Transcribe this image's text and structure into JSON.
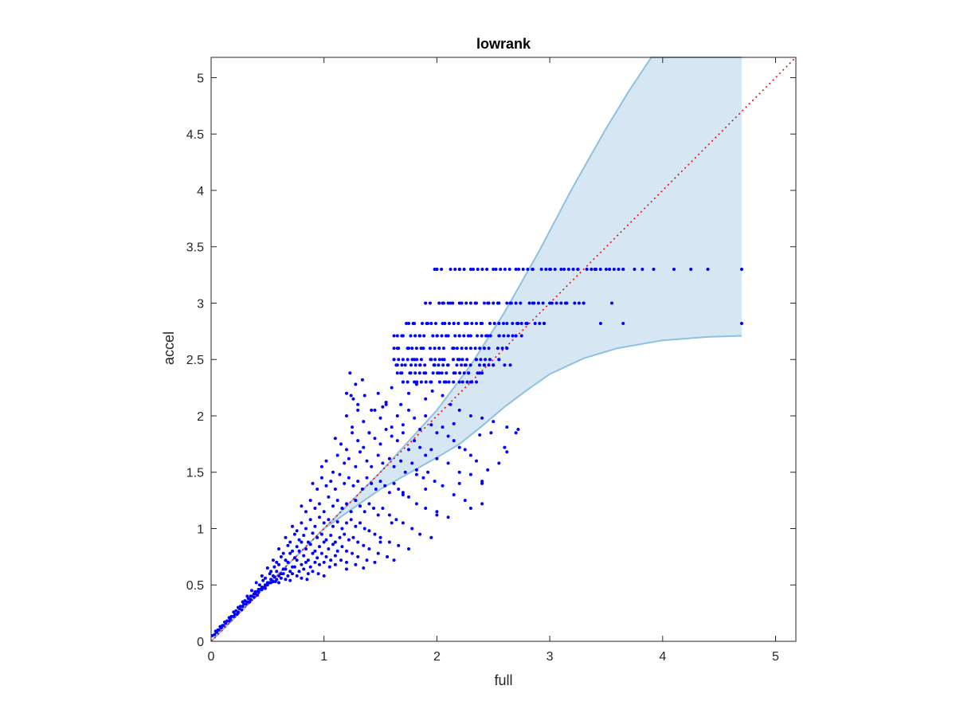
{
  "chart_data": {
    "type": "scatter",
    "title": "lowrank",
    "xlabel": "full",
    "ylabel": "accel",
    "xlim": [
      0,
      5.18
    ],
    "ylim": [
      0,
      5.18
    ],
    "xticks": [
      "0",
      "1",
      "2",
      "3",
      "4",
      "5"
    ],
    "yticks": [
      "0",
      "0.5",
      "1",
      "1.5",
      "2",
      "2.5",
      "3",
      "3.5",
      "4",
      "4.5",
      "5"
    ],
    "xtick_values": [
      0,
      1,
      2,
      3,
      4,
      5
    ],
    "ytick_values": [
      0,
      0.5,
      1,
      1.5,
      2,
      2.5,
      3,
      3.5,
      4,
      4.5,
      5
    ],
    "grid": false,
    "colors": {
      "points": "#0000ff",
      "band_fill": "#d6e7f3",
      "band_edge": "#8ec1df",
      "reference_line": "#ff0000",
      "axes": "#262626"
    },
    "reference_line": {
      "style": "dotted",
      "from": [
        0,
        0
      ],
      "to": [
        5.18,
        5.18
      ]
    },
    "band": {
      "upper": [
        [
          0,
          0
        ],
        [
          0.5,
          0.5
        ],
        [
          1,
          1
        ],
        [
          1.5,
          1.5
        ],
        [
          2,
          2.05
        ],
        [
          2.3,
          2.45
        ],
        [
          2.6,
          2.92
        ],
        [
          2.9,
          3.45
        ],
        [
          3.2,
          4.02
        ],
        [
          3.5,
          4.55
        ],
        [
          3.7,
          4.88
        ],
        [
          3.9,
          5.18
        ],
        [
          4.7,
          5.18
        ]
      ],
      "lower": [
        [
          4.7,
          2.71
        ],
        [
          4.4,
          2.7
        ],
        [
          4.0,
          2.67
        ],
        [
          3.6,
          2.6
        ],
        [
          3.3,
          2.51
        ],
        [
          3.0,
          2.37
        ],
        [
          2.8,
          2.23
        ],
        [
          2.6,
          2.08
        ],
        [
          2.4,
          1.91
        ],
        [
          2.2,
          1.75
        ],
        [
          2.0,
          1.63
        ],
        [
          1.5,
          1.35
        ],
        [
          1,
          1
        ],
        [
          0.5,
          0.5
        ],
        [
          0,
          0
        ]
      ]
    },
    "horizontal_bands": [
      {
        "y": 3.3,
        "x_from": 2.0,
        "x_to": 3.65
      },
      {
        "y": 3.0,
        "x_from": 1.9,
        "x_to": 3.3
      },
      {
        "y": 2.82,
        "x_from": 1.75,
        "x_to": 2.95
      },
      {
        "y": 2.71,
        "x_from": 1.65,
        "x_to": 2.75
      },
      {
        "y": 2.6,
        "x_from": 1.62,
        "x_to": 2.62
      },
      {
        "y": 2.5,
        "x_from": 1.62,
        "x_to": 2.55
      },
      {
        "y": 2.45,
        "x_from": 1.65,
        "x_to": 2.5
      },
      {
        "y": 2.38,
        "x_from": 1.65,
        "x_to": 2.4
      },
      {
        "y": 2.3,
        "x_from": 1.7,
        "x_to": 2.35
      }
    ],
    "series": [
      {
        "x": [
          1.98,
          2.0,
          2.2,
          2.3,
          2.5,
          2.7,
          2.85,
          3.0,
          3.1,
          3.25,
          3.4,
          3.5,
          3.65,
          3.75,
          3.82,
          3.92,
          4.1,
          4.25,
          4.4,
          4.7,
          1.9,
          2.05,
          2.12,
          2.2,
          2.35,
          2.45,
          2.55,
          2.65,
          2.85,
          3.0,
          3.15,
          3.3,
          3.55,
          1.73,
          1.8,
          1.92,
          2.05,
          2.15,
          2.25,
          2.4,
          2.55,
          2.62,
          2.72,
          2.8,
          2.95,
          3.45,
          3.65,
          4.7,
          1.62,
          1.7,
          1.85,
          2.0,
          2.1,
          2.2,
          2.3,
          2.45,
          2.55,
          2.7,
          1.65,
          1.75,
          1.88,
          2.02,
          2.15,
          2.3,
          2.42,
          2.62,
          1.62,
          1.7,
          1.8,
          1.95,
          2.05,
          2.2,
          2.35,
          2.55,
          1.64,
          1.72,
          1.85,
          1.98,
          2.1,
          2.25,
          2.42,
          2.5,
          2.6,
          2.65,
          1.68,
          1.76,
          1.9,
          2.02,
          2.15,
          2.28,
          2.38,
          1.7,
          1.8,
          1.95,
          2.08,
          2.2,
          2.3,
          1.2,
          1.26,
          1.3,
          1.36,
          1.42,
          1.48,
          1.55,
          1.6,
          1.68,
          1.75,
          1.82,
          1.9,
          1.96,
          2.05,
          2.12,
          2.2,
          2.3,
          2.4,
          2.5,
          2.62,
          2.7,
          1.2,
          1.25,
          1.3,
          1.35,
          1.4,
          1.45,
          1.5,
          1.55,
          1.6,
          1.65,
          1.7,
          1.75,
          1.8,
          1.85,
          1.9,
          1.95,
          2.0,
          2.05,
          2.1,
          2.15,
          2.2,
          2.25,
          2.3,
          2.35,
          1.1,
          1.15,
          1.2,
          1.25,
          1.3,
          1.35,
          1.4,
          1.45,
          1.5,
          1.55,
          1.6,
          1.65,
          1.7,
          1.75,
          1.8,
          1.85,
          1.9,
          1.95,
          2.0,
          2.1,
          2.2,
          2.3,
          2.4,
          0.98,
          1.02,
          1.08,
          1.12,
          1.18,
          1.22,
          1.28,
          1.32,
          1.38,
          1.42,
          1.48,
          1.52,
          1.58,
          1.62,
          1.68,
          1.72,
          1.78,
          1.82,
          1.88,
          1.92,
          1.98,
          2.05,
          2.15,
          2.25,
          2.4,
          0.9,
          0.94,
          0.98,
          1.02,
          1.06,
          1.1,
          1.14,
          1.18,
          1.22,
          1.26,
          1.3,
          1.34,
          1.38,
          1.42,
          1.46,
          1.5,
          1.54,
          1.58,
          1.62,
          1.66,
          1.7,
          1.75,
          1.82,
          1.9,
          2.0,
          2.1,
          0.8,
          0.84,
          0.88,
          0.92,
          0.96,
          1.0,
          1.04,
          1.08,
          1.12,
          1.16,
          1.2,
          1.24,
          1.28,
          1.32,
          1.36,
          1.4,
          1.44,
          1.48,
          1.52,
          1.58,
          1.64,
          1.7,
          1.78,
          1.85,
          1.95,
          0.72,
          0.76,
          0.8,
          0.84,
          0.88,
          0.92,
          0.96,
          1.0,
          1.04,
          1.08,
          1.12,
          1.16,
          1.2,
          1.24,
          1.28,
          1.32,
          1.36,
          1.4,
          1.45,
          1.5,
          1.58,
          1.66,
          1.75,
          0.66,
          0.7,
          0.74,
          0.78,
          0.82,
          0.86,
          0.9,
          0.94,
          0.98,
          1.02,
          1.06,
          1.1,
          1.14,
          1.18,
          1.22,
          1.26,
          1.3,
          1.35,
          1.4,
          1.48,
          1.56,
          1.62,
          0.6,
          0.64,
          0.68,
          0.72,
          0.76,
          0.8,
          0.84,
          0.88,
          0.92,
          0.96,
          1.0,
          1.04,
          1.08,
          1.12,
          1.16,
          1.2,
          1.25,
          1.3,
          1.38,
          1.45,
          0.55,
          0.58,
          0.62,
          0.66,
          0.7,
          0.74,
          0.78,
          0.82,
          0.86,
          0.9,
          0.94,
          0.98,
          1.02,
          1.06,
          1.1,
          1.15,
          1.2,
          1.28,
          1.35,
          0.5,
          0.53,
          0.56,
          0.6,
          0.64,
          0.68,
          0.72,
          0.76,
          0.8,
          0.84,
          0.88,
          0.92,
          0.96,
          1.0,
          1.05,
          1.1,
          1.2,
          0.45,
          0.48,
          0.52,
          0.55,
          0.58,
          0.62,
          0.66,
          0.7,
          0.74,
          0.78,
          0.82,
          0.86,
          0.9,
          0.95,
          1.0,
          0.4,
          0.43,
          0.46,
          0.5,
          0.53,
          0.56,
          0.6,
          0.64,
          0.68,
          0.72,
          0.76,
          0.8,
          0.85,
          0.36,
          0.39,
          0.42,
          0.45,
          0.48,
          0.52,
          0.55,
          0.58,
          0.62,
          0.66,
          0.7,
          0.32,
          0.35,
          0.38,
          0.41,
          0.44,
          0.47,
          0.5,
          0.53,
          0.57,
          0.6,
          0.28,
          0.3,
          0.33,
          0.36,
          0.39,
          0.42,
          0.45,
          0.48,
          0.24,
          0.26,
          0.29,
          0.32,
          0.35,
          0.38,
          0.41,
          0.2,
          0.22,
          0.25,
          0.28,
          0.31,
          0.34,
          0.16,
          0.18,
          0.21,
          0.24,
          0.27,
          0.12,
          0.14,
          0.17,
          0.2,
          0.23,
          0.08,
          0.1,
          0.13,
          0.16,
          0.04,
          0.06,
          0.09,
          0.11,
          0.01,
          0.03,
          0.05,
          0.07,
          1.23,
          1.24,
          1.28,
          1.34,
          1.52,
          2.15,
          2.38,
          2.48,
          2.6,
          2.72,
          2.55,
          2.4,
          2.2,
          1.6,
          1.5,
          2.62,
          1.28,
          2.0,
          2.3,
          1.7,
          1.9,
          2.45,
          1.82
        ],
        "y": [
          3.3,
          3.3,
          3.3,
          3.3,
          3.3,
          3.3,
          3.3,
          3.3,
          3.3,
          3.3,
          3.3,
          3.3,
          3.3,
          3.3,
          3.3,
          3.3,
          3.3,
          3.3,
          3.3,
          3.3,
          3.0,
          3.0,
          3.0,
          3.0,
          3.0,
          3.0,
          3.0,
          3.0,
          3.0,
          3.0,
          3.0,
          3.0,
          3.0,
          2.82,
          2.82,
          2.82,
          2.82,
          2.82,
          2.82,
          2.82,
          2.82,
          2.82,
          2.82,
          2.82,
          2.82,
          2.82,
          2.82,
          2.82,
          2.71,
          2.71,
          2.71,
          2.71,
          2.71,
          2.71,
          2.71,
          2.71,
          2.71,
          2.71,
          2.6,
          2.6,
          2.6,
          2.6,
          2.6,
          2.6,
          2.6,
          2.6,
          2.5,
          2.5,
          2.5,
          2.5,
          2.5,
          2.5,
          2.5,
          2.5,
          2.45,
          2.45,
          2.45,
          2.45,
          2.45,
          2.45,
          2.45,
          2.45,
          2.45,
          2.45,
          2.38,
          2.38,
          2.38,
          2.38,
          2.38,
          2.38,
          2.38,
          2.3,
          2.3,
          2.3,
          2.3,
          2.3,
          2.3,
          2.2,
          2.15,
          2.1,
          2.18,
          2.05,
          2.2,
          2.12,
          2.25,
          2.1,
          2.2,
          2.28,
          2.15,
          2.22,
          2.18,
          2.1,
          2.05,
          2.0,
          1.98,
          1.95,
          1.9,
          1.85,
          2.0,
          1.9,
          2.05,
          1.95,
          1.85,
          2.05,
          1.98,
          2.1,
          1.9,
          2.0,
          1.92,
          2.05,
          1.98,
          1.88,
          2.0,
          1.92,
          1.85,
          1.9,
          1.82,
          1.78,
          1.72,
          1.7,
          1.65,
          1.6,
          1.8,
          1.75,
          1.7,
          1.85,
          1.78,
          1.72,
          1.85,
          1.8,
          1.75,
          1.88,
          1.82,
          1.78,
          1.85,
          1.7,
          1.78,
          1.72,
          1.65,
          1.7,
          1.62,
          1.58,
          1.5,
          1.48,
          1.4,
          1.55,
          1.6,
          1.5,
          1.65,
          1.58,
          1.62,
          1.55,
          1.68,
          1.6,
          1.55,
          1.65,
          1.58,
          1.62,
          1.55,
          1.6,
          1.5,
          1.58,
          1.52,
          1.45,
          1.5,
          1.42,
          1.38,
          1.3,
          1.25,
          1.22,
          1.4,
          1.35,
          1.45,
          1.38,
          1.42,
          1.35,
          1.48,
          1.4,
          1.45,
          1.38,
          1.42,
          1.35,
          1.45,
          1.4,
          1.35,
          1.42,
          1.38,
          1.32,
          1.4,
          1.35,
          1.3,
          1.28,
          1.22,
          1.18,
          1.15,
          1.1,
          1.2,
          1.15,
          1.25,
          1.18,
          1.22,
          1.15,
          1.28,
          1.2,
          1.25,
          1.18,
          1.22,
          1.15,
          1.25,
          1.2,
          1.15,
          1.22,
          1.18,
          1.12,
          1.18,
          1.12,
          1.08,
          1.05,
          1.0,
          0.95,
          0.92,
          1.02,
          0.98,
          1.05,
          1.0,
          1.08,
          1.02,
          1.1,
          1.05,
          1.08,
          1.02,
          1.06,
          1.0,
          1.05,
          1.08,
          1.02,
          1.05,
          1.0,
          0.98,
          0.95,
          0.92,
          0.88,
          0.85,
          0.82,
          0.92,
          0.88,
          0.95,
          0.9,
          0.94,
          0.88,
          0.96,
          0.92,
          0.95,
          0.9,
          0.94,
          0.88,
          0.92,
          0.95,
          0.9,
          0.92,
          0.88,
          0.85,
          0.82,
          0.78,
          0.75,
          0.72,
          0.82,
          0.78,
          0.85,
          0.8,
          0.84,
          0.88,
          0.82,
          0.86,
          0.8,
          0.84,
          0.88,
          0.82,
          0.86,
          0.8,
          0.84,
          0.8,
          0.78,
          0.75,
          0.72,
          0.7,
          0.72,
          0.7,
          0.75,
          0.72,
          0.78,
          0.74,
          0.8,
          0.76,
          0.72,
          0.78,
          0.74,
          0.78,
          0.75,
          0.72,
          0.76,
          0.72,
          0.7,
          0.68,
          0.65,
          0.65,
          0.62,
          0.66,
          0.68,
          0.64,
          0.7,
          0.66,
          0.72,
          0.68,
          0.7,
          0.66,
          0.7,
          0.68,
          0.7,
          0.66,
          0.68,
          0.64,
          0.58,
          0.56,
          0.6,
          0.58,
          0.62,
          0.6,
          0.64,
          0.62,
          0.66,
          0.62,
          0.64,
          0.6,
          0.62,
          0.6,
          0.58,
          0.52,
          0.5,
          0.54,
          0.52,
          0.55,
          0.57,
          0.58,
          0.6,
          0.58,
          0.6,
          0.58,
          0.56,
          0.55,
          0.45,
          0.44,
          0.46,
          0.48,
          0.5,
          0.52,
          0.53,
          0.55,
          0.56,
          0.55,
          0.54,
          0.4,
          0.4,
          0.42,
          0.44,
          0.46,
          0.48,
          0.5,
          0.52,
          0.53,
          0.52,
          0.35,
          0.36,
          0.38,
          0.4,
          0.42,
          0.44,
          0.46,
          0.47,
          0.3,
          0.31,
          0.33,
          0.35,
          0.37,
          0.39,
          0.41,
          0.26,
          0.27,
          0.29,
          0.31,
          0.33,
          0.35,
          0.21,
          0.22,
          0.24,
          0.26,
          0.28,
          0.17,
          0.18,
          0.2,
          0.22,
          0.24,
          0.13,
          0.14,
          0.16,
          0.18,
          0.09,
          0.1,
          0.12,
          0.14,
          0.05,
          0.06,
          0.08,
          0.1,
          2.38,
          2.18,
          2.28,
          2.32,
          2.08,
          1.93,
          1.83,
          1.85,
          1.72,
          1.88,
          1.58,
          1.42,
          1.4,
          1.05,
          0.88,
          1.68,
          1.25,
          1.12,
          1.18,
          1.32,
          1.35,
          1.52,
          1.48
        ]
      }
    ]
  }
}
